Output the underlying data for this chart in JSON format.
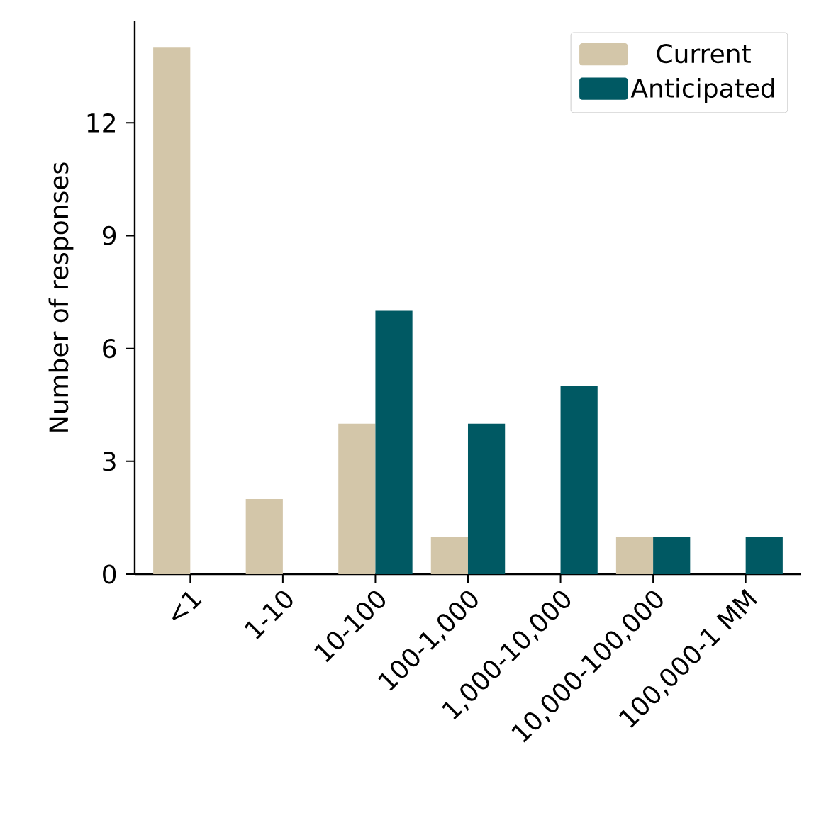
{
  "chart_data": {
    "type": "bar",
    "ylabel": "Number of responses",
    "categories": [
      "<1",
      "1-10",
      "10-100",
      "100-1,000",
      "1,000-10,000",
      "10,000-100,000",
      "100,000-1 MM"
    ],
    "series": [
      {
        "name": "Current",
        "color": "#d3c6a9",
        "values": [
          14,
          2,
          4,
          1,
          0,
          1,
          0
        ]
      },
      {
        "name": "Anticipated",
        "color": "#005963",
        "values": [
          0,
          0,
          7,
          4,
          5,
          1,
          1
        ]
      }
    ],
    "ylim": [
      0,
      14.7
    ],
    "yticks": [
      0,
      3,
      6,
      9,
      12
    ],
    "legend": "top right"
  }
}
